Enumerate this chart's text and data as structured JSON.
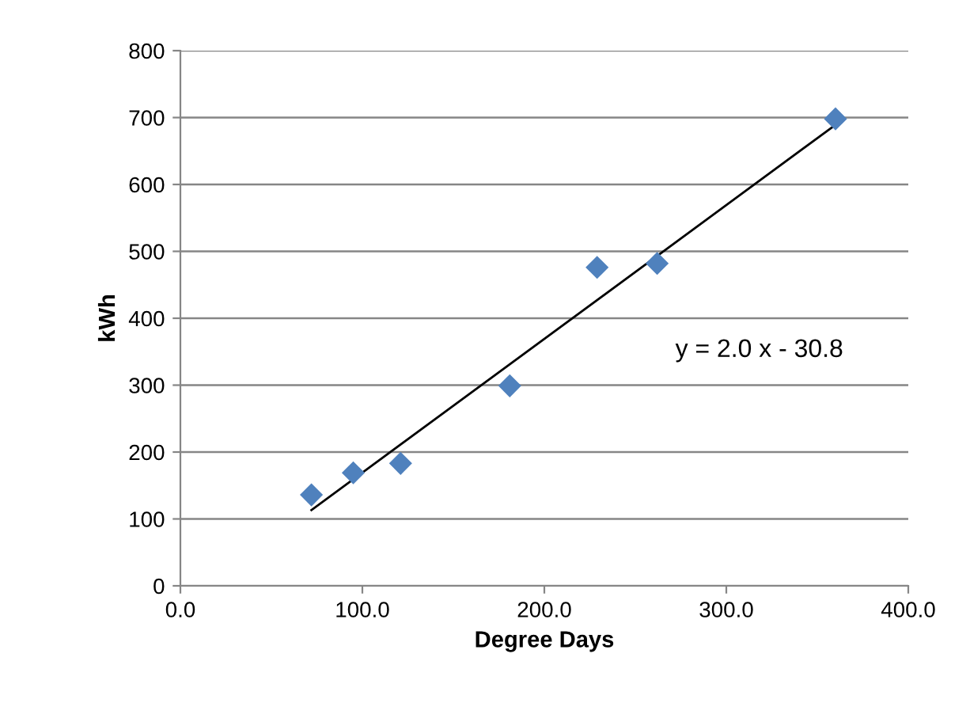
{
  "chart_data": {
    "type": "scatter",
    "xlabel": "Degree Days",
    "ylabel": "kWh",
    "marker": "diamond",
    "grid": "y",
    "legend": false,
    "xlim": [
      0,
      400
    ],
    "xticks": [
      {
        "value": 0,
        "label": "0.0"
      },
      {
        "value": 100,
        "label": "100.0"
      },
      {
        "value": 200,
        "label": "200.0"
      },
      {
        "value": 300,
        "label": "300.0"
      },
      {
        "value": 400,
        "label": "400.0"
      }
    ],
    "ylim": [
      0,
      800
    ],
    "yticks": [
      0,
      100,
      200,
      300,
      400,
      500,
      600,
      700,
      800
    ],
    "series": [
      {
        "color": "#4f81bd",
        "x": [
          72,
          95,
          121,
          181,
          229,
          262,
          360
        ],
        "values": [
          136,
          169,
          183,
          299,
          476,
          482,
          698
        ]
      },
      {
        "type": "line",
        "color": "#000000",
        "marker": "none",
        "x": [
          72,
          360
        ],
        "values": [
          113.2,
          689.2
        ]
      }
    ],
    "annotations": [
      "y = 2.0 x - 30.8"
    ]
  }
}
